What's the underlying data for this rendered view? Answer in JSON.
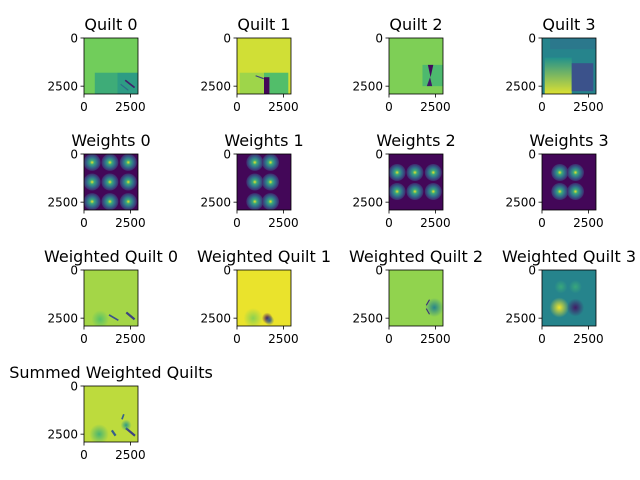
{
  "figure": {
    "background": "#ffffff",
    "colormap": "viridis",
    "colormap_stops": [
      "#440154",
      "#3b528b",
      "#21918c",
      "#5ec962",
      "#fde725"
    ]
  },
  "chart_data": [
    {
      "type": "heatmap",
      "title": "Quilt 0",
      "x_ticks": [
        "0",
        "2500"
      ],
      "y_ticks": [
        "0",
        "2500"
      ],
      "base": 0.78,
      "features": [
        {
          "kind": "rect",
          "x0": 0.2,
          "x1": 0.62,
          "y0": 0.62,
          "y1": 1.0,
          "v": 0.62
        },
        {
          "kind": "rect",
          "x0": 0.62,
          "x1": 1.0,
          "y0": 0.62,
          "y1": 1.0,
          "v": 0.55
        },
        {
          "kind": "stripe",
          "x": 0.85,
          "y": 0.82,
          "w": 0.22,
          "h": 0.03,
          "angle": 38,
          "v": 0.1
        },
        {
          "kind": "stripe",
          "x": 0.75,
          "y": 0.88,
          "w": 0.18,
          "h": 0.02,
          "angle": 38,
          "v": 0.35
        }
      ]
    },
    {
      "type": "heatmap",
      "title": "Quilt 1",
      "x_ticks": [
        "0",
        "2500"
      ],
      "y_ticks": [
        "0",
        "2500"
      ],
      "base": 0.93,
      "features": [
        {
          "kind": "rect",
          "x0": 0.05,
          "x1": 0.5,
          "y0": 0.62,
          "y1": 1.0,
          "v": 0.85
        },
        {
          "kind": "rect",
          "x0": 0.5,
          "x1": 0.95,
          "y0": 0.62,
          "y1": 1.0,
          "v": 0.7
        },
        {
          "kind": "rect",
          "x0": 0.5,
          "x1": 0.6,
          "y0": 0.7,
          "y1": 1.0,
          "v": 0.02
        },
        {
          "kind": "stripe",
          "x": 0.42,
          "y": 0.7,
          "w": 0.16,
          "h": 0.02,
          "angle": 20,
          "v": 0.2
        }
      ]
    },
    {
      "type": "heatmap",
      "title": "Quilt 2",
      "x_ticks": [
        "0",
        "2500"
      ],
      "y_ticks": [
        "0",
        "2500"
      ],
      "base": 0.8,
      "features": [
        {
          "kind": "rect",
          "x0": 0.62,
          "x1": 1.0,
          "y0": 0.48,
          "y1": 0.86,
          "v": 0.68
        },
        {
          "kind": "tri",
          "points": [
            [
              0.72,
              0.48
            ],
            [
              0.82,
              0.48
            ],
            [
              0.77,
              0.7
            ]
          ],
          "v": 0.03
        },
        {
          "kind": "tri",
          "points": [
            [
              0.7,
              0.86
            ],
            [
              0.8,
              0.86
            ],
            [
              0.76,
              0.7
            ]
          ],
          "v": 0.08
        }
      ]
    },
    {
      "type": "heatmap",
      "title": "Quilt 3",
      "x_ticks": [
        "0",
        "2500"
      ],
      "y_ticks": [
        "0",
        "2500"
      ],
      "base": 0.45,
      "features": [
        {
          "kind": "grad",
          "x0": 0.05,
          "x1": 0.55,
          "y0": 0.35,
          "y1": 1.0,
          "v0": 0.95,
          "v1": 0.5
        },
        {
          "kind": "rect",
          "x0": 0.55,
          "x1": 0.95,
          "y0": 0.45,
          "y1": 0.95,
          "v": 0.25
        },
        {
          "kind": "rect",
          "x0": 0.15,
          "x1": 1.0,
          "y0": 0.0,
          "y1": 0.2,
          "v": 0.4
        }
      ]
    },
    {
      "type": "heatmap",
      "title": "Weights 0",
      "x_ticks": [
        "0",
        "2500"
      ],
      "y_ticks": [
        "0",
        "2500"
      ],
      "base": 0.02,
      "blobs": [
        [
          0.15,
          0.15
        ],
        [
          0.48,
          0.15
        ],
        [
          0.82,
          0.15
        ],
        [
          0.15,
          0.5
        ],
        [
          0.48,
          0.5
        ],
        [
          0.82,
          0.5
        ],
        [
          0.15,
          0.85
        ],
        [
          0.48,
          0.85
        ],
        [
          0.82,
          0.85
        ]
      ]
    },
    {
      "type": "heatmap",
      "title": "Weights 1",
      "x_ticks": [
        "0",
        "2500"
      ],
      "y_ticks": [
        "0",
        "2500"
      ],
      "base": 0.02,
      "blobs": [
        [
          0.33,
          0.15
        ],
        [
          0.62,
          0.15
        ],
        [
          0.33,
          0.5
        ],
        [
          0.62,
          0.5
        ],
        [
          0.33,
          0.85
        ],
        [
          0.62,
          0.85
        ]
      ]
    },
    {
      "type": "heatmap",
      "title": "Weights 2",
      "x_ticks": [
        "0",
        "2500"
      ],
      "y_ticks": [
        "0",
        "2500"
      ],
      "base": 0.02,
      "blobs": [
        [
          0.15,
          0.33
        ],
        [
          0.48,
          0.33
        ],
        [
          0.82,
          0.33
        ],
        [
          0.15,
          0.67
        ],
        [
          0.48,
          0.67
        ],
        [
          0.82,
          0.67
        ]
      ]
    },
    {
      "type": "heatmap",
      "title": "Weights 3",
      "x_ticks": [
        "0",
        "2500"
      ],
      "y_ticks": [
        "0",
        "2500"
      ],
      "base": 0.02,
      "blobs": [
        [
          0.33,
          0.33
        ],
        [
          0.62,
          0.33
        ],
        [
          0.33,
          0.67
        ],
        [
          0.62,
          0.67
        ]
      ]
    },
    {
      "type": "heatmap",
      "title": "Weighted Quilt 0",
      "x_ticks": [
        "0",
        "2500"
      ],
      "y_ticks": [
        "0",
        "2500"
      ],
      "base": 0.86,
      "features": [
        {
          "kind": "glow",
          "x": 0.3,
          "y": 0.88,
          "r": 0.16,
          "v": 0.72
        },
        {
          "kind": "stripe",
          "x": 0.55,
          "y": 0.85,
          "w": 0.2,
          "h": 0.03,
          "angle": 30,
          "v": 0.25
        },
        {
          "kind": "stripe",
          "x": 0.86,
          "y": 0.82,
          "w": 0.2,
          "h": 0.04,
          "angle": 40,
          "v": 0.2
        }
      ]
    },
    {
      "type": "heatmap",
      "title": "Weighted Quilt 1",
      "x_ticks": [
        "0",
        "2500"
      ],
      "y_ticks": [
        "0",
        "2500"
      ],
      "base": 0.97,
      "features": [
        {
          "kind": "glow",
          "x": 0.3,
          "y": 0.86,
          "r": 0.18,
          "v": 0.82
        },
        {
          "kind": "glow",
          "x": 0.56,
          "y": 0.86,
          "r": 0.1,
          "v": 0.05
        },
        {
          "kind": "glow",
          "x": 0.6,
          "y": 0.9,
          "r": 0.09,
          "v": 0.3
        }
      ]
    },
    {
      "type": "heatmap",
      "title": "Weighted Quilt 2",
      "x_ticks": [
        "0",
        "2500"
      ],
      "y_ticks": [
        "0",
        "2500"
      ],
      "base": 0.83,
      "features": [
        {
          "kind": "glow",
          "x": 0.84,
          "y": 0.67,
          "r": 0.17,
          "v": 0.45
        },
        {
          "kind": "stripe",
          "x": 0.72,
          "y": 0.58,
          "w": 0.12,
          "h": 0.02,
          "angle": -60,
          "v": 0.15
        },
        {
          "kind": "stripe",
          "x": 0.72,
          "y": 0.74,
          "w": 0.12,
          "h": 0.02,
          "angle": 60,
          "v": 0.15
        }
      ]
    },
    {
      "type": "heatmap",
      "title": "Weighted Quilt 3",
      "x_ticks": [
        "0",
        "2500"
      ],
      "y_ticks": [
        "0",
        "2500"
      ],
      "base": 0.45,
      "features": [
        {
          "kind": "glow",
          "x": 0.35,
          "y": 0.3,
          "r": 0.12,
          "v": 0.6
        },
        {
          "kind": "glow",
          "x": 0.62,
          "y": 0.3,
          "r": 0.12,
          "v": 0.6
        },
        {
          "kind": "glow",
          "x": 0.32,
          "y": 0.67,
          "r": 0.18,
          "v": 0.98
        },
        {
          "kind": "glow",
          "x": 0.62,
          "y": 0.67,
          "r": 0.16,
          "v": 0.08
        }
      ]
    },
    {
      "type": "heatmap",
      "title": "Summed Weighted Quilts",
      "x_ticks": [
        "0",
        "2500"
      ],
      "y_ticks": [
        "0",
        "2500"
      ],
      "base": 0.9,
      "features": [
        {
          "kind": "glow",
          "x": 0.28,
          "y": 0.86,
          "r": 0.18,
          "v": 0.66
        },
        {
          "kind": "stripe",
          "x": 0.55,
          "y": 0.84,
          "w": 0.12,
          "h": 0.04,
          "angle": 55,
          "v": 0.3
        },
        {
          "kind": "stripe",
          "x": 0.72,
          "y": 0.55,
          "w": 0.1,
          "h": 0.03,
          "angle": -70,
          "v": 0.3
        },
        {
          "kind": "stripe",
          "x": 0.86,
          "y": 0.82,
          "w": 0.22,
          "h": 0.04,
          "angle": 40,
          "v": 0.2
        },
        {
          "kind": "glow",
          "x": 0.78,
          "y": 0.7,
          "r": 0.1,
          "v": 0.55
        }
      ]
    }
  ]
}
